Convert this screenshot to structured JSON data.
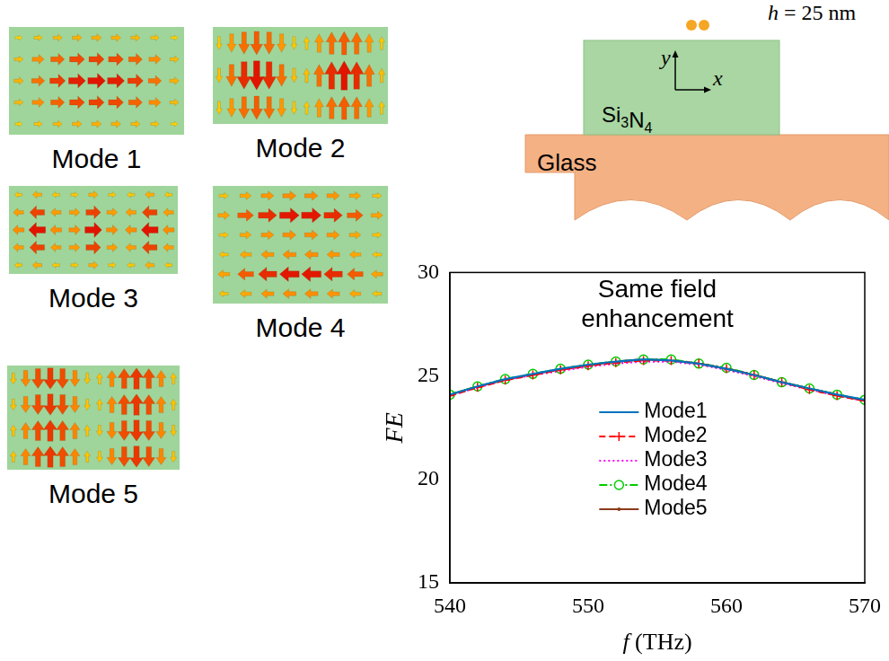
{
  "modes": {
    "labels": [
      "Mode 1",
      "Mode 2",
      "Mode 3",
      "Mode 4",
      "Mode 5"
    ]
  },
  "schematic": {
    "height_label": "h = 25 nm",
    "waveguide_label": "Si3N4",
    "substrate_label": "Glass",
    "axis_labels": [
      "y",
      "x"
    ]
  },
  "chart_data": {
    "type": "line",
    "annotation": "Same field enhancement",
    "x_label": "f (THz)",
    "y_label": "FE",
    "x": [
      540,
      542,
      544,
      546,
      548,
      550,
      552,
      554,
      556,
      558,
      560,
      562,
      564,
      566,
      568,
      570
    ],
    "xlim": [
      540,
      570
    ],
    "xticks": [
      540,
      550,
      560,
      570
    ],
    "ylim": [
      15,
      30
    ],
    "yticks": [
      15,
      20,
      25,
      30
    ],
    "grid": false,
    "legend": "lower right",
    "series": [
      {
        "name": "Mode1",
        "color": "#0072bd",
        "line_style": "solid",
        "marker": "none",
        "values": [
          24.1,
          24.5,
          24.85,
          25.1,
          25.35,
          25.55,
          25.7,
          25.8,
          25.75,
          25.6,
          25.35,
          25.05,
          24.7,
          24.4,
          24.1,
          23.85
        ]
      },
      {
        "name": "Mode2",
        "color": "#ff0000",
        "line_style": "dashed",
        "marker": "plus",
        "values": [
          24.05,
          24.45,
          24.8,
          25.05,
          25.3,
          25.5,
          25.65,
          25.75,
          25.75,
          25.6,
          25.35,
          25.05,
          24.7,
          24.35,
          24.05,
          23.8
        ]
      },
      {
        "name": "Mode3",
        "color": "#ff00ff",
        "line_style": "dotted",
        "marker": "none",
        "values": [
          24.05,
          24.45,
          24.8,
          25.05,
          25.25,
          25.45,
          25.6,
          25.7,
          25.7,
          25.55,
          25.3,
          25.0,
          24.65,
          24.35,
          24.05,
          23.8
        ]
      },
      {
        "name": "Mode4",
        "color": "#00cc00",
        "line_style": "dashdot",
        "marker": "circle",
        "values": [
          24.1,
          24.5,
          24.85,
          25.1,
          25.35,
          25.55,
          25.7,
          25.8,
          25.8,
          25.6,
          25.4,
          25.05,
          24.7,
          24.4,
          24.1,
          23.85
        ]
      },
      {
        "name": "Mode5",
        "color": "#8b3a1a",
        "line_style": "solid",
        "marker": "dot",
        "values": [
          24.1,
          24.5,
          24.8,
          25.1,
          25.3,
          25.5,
          25.7,
          25.8,
          25.75,
          25.6,
          25.35,
          25.05,
          24.7,
          24.4,
          24.1,
          23.8
        ]
      }
    ]
  }
}
